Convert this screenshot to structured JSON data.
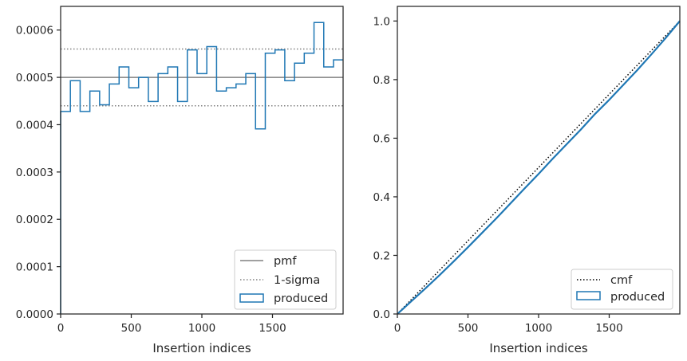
{
  "chart_data": [
    {
      "type": "histogram",
      "xlabel": "Insertion indices",
      "ylabel": "",
      "xlim": [
        0,
        2000
      ],
      "ylim": [
        0,
        0.00065
      ],
      "xticks": [
        0,
        500,
        1000,
        1500
      ],
      "xtick_labels": [
        "0",
        "500",
        "1000",
        "1500"
      ],
      "yticks": [
        0,
        0.0001,
        0.0002,
        0.0003,
        0.0004,
        0.0005,
        0.0006
      ],
      "ytick_labels": [
        "0.0000",
        "0.0001",
        "0.0002",
        "0.0003",
        "0.0004",
        "0.0005",
        "0.0006"
      ],
      "grid": false,
      "legend_position": "lower-right",
      "reference_lines": [
        {
          "name": "pmf",
          "y": 0.0005,
          "style": "solid",
          "color": "#808080"
        },
        {
          "name": "1-sigma",
          "y": 0.00056,
          "style": "dotted",
          "color": "#808080"
        },
        {
          "name": "1-sigma",
          "y": 0.00044,
          "style": "dotted",
          "color": "#808080"
        }
      ],
      "legend": [
        {
          "label": "pmf",
          "kind": "solid-line",
          "color": "#808080"
        },
        {
          "label": "1-sigma",
          "kind": "dotted-line",
          "color": "#808080"
        },
        {
          "label": "produced",
          "kind": "box",
          "color": "#1f77b4"
        }
      ],
      "series": [
        {
          "name": "produced",
          "color": "#1f77b4",
          "bin_edges": [
            0,
            69,
            138,
            207,
            276,
            345,
            414,
            483,
            552,
            621,
            690,
            759,
            828,
            897,
            966,
            1035,
            1104,
            1173,
            1242,
            1311,
            1380,
            1449,
            1518,
            1587,
            1656,
            1725,
            1794,
            1863,
            1932,
            2000
          ],
          "values": [
            0.000428,
            0.000493,
            0.000428,
            0.000471,
            0.000442,
            0.000486,
            0.000522,
            0.000478,
            0.0005,
            0.000449,
            0.000508,
            0.000522,
            0.000449,
            0.000558,
            0.000508,
            0.000565,
            0.000471,
            0.000478,
            0.000486,
            0.000508,
            0.000391,
            0.000551,
            0.000558,
            0.000493,
            0.00053,
            0.000551,
            0.000616,
            0.000522,
            0.000537
          ]
        }
      ]
    },
    {
      "type": "line",
      "xlabel": "Insertion indices",
      "ylabel": "",
      "xlim": [
        0,
        2000
      ],
      "ylim": [
        0,
        1.05
      ],
      "xticks": [
        0,
        500,
        1000,
        1500
      ],
      "xtick_labels": [
        "0",
        "500",
        "1000",
        "1500"
      ],
      "yticks": [
        0,
        0.2,
        0.4,
        0.6,
        0.8,
        1.0
      ],
      "ytick_labels": [
        "0.0",
        "0.2",
        "0.4",
        "0.6",
        "0.8",
        "1.0"
      ],
      "grid": false,
      "legend_position": "lower-right",
      "legend": [
        {
          "label": "cmf",
          "kind": "dotted-line",
          "color": "#000000"
        },
        {
          "label": "produced",
          "kind": "box",
          "color": "#1f77b4"
        }
      ],
      "series": [
        {
          "name": "cmf",
          "style": "dotted",
          "color": "#000000",
          "x": [
            0,
            2000
          ],
          "y": [
            0,
            1.0
          ]
        },
        {
          "name": "produced",
          "style": "solid",
          "color": "#1f77b4",
          "x": [
            0,
            100,
            200,
            300,
            400,
            500,
            600,
            700,
            800,
            900,
            1000,
            1100,
            1200,
            1300,
            1400,
            1500,
            1600,
            1700,
            1800,
            1900,
            2000
          ],
          "y": [
            0,
            0.044,
            0.088,
            0.133,
            0.18,
            0.228,
            0.277,
            0.326,
            0.377,
            0.428,
            0.478,
            0.53,
            0.58,
            0.63,
            0.683,
            0.731,
            0.782,
            0.833,
            0.887,
            0.942,
            1.0
          ]
        }
      ]
    }
  ]
}
